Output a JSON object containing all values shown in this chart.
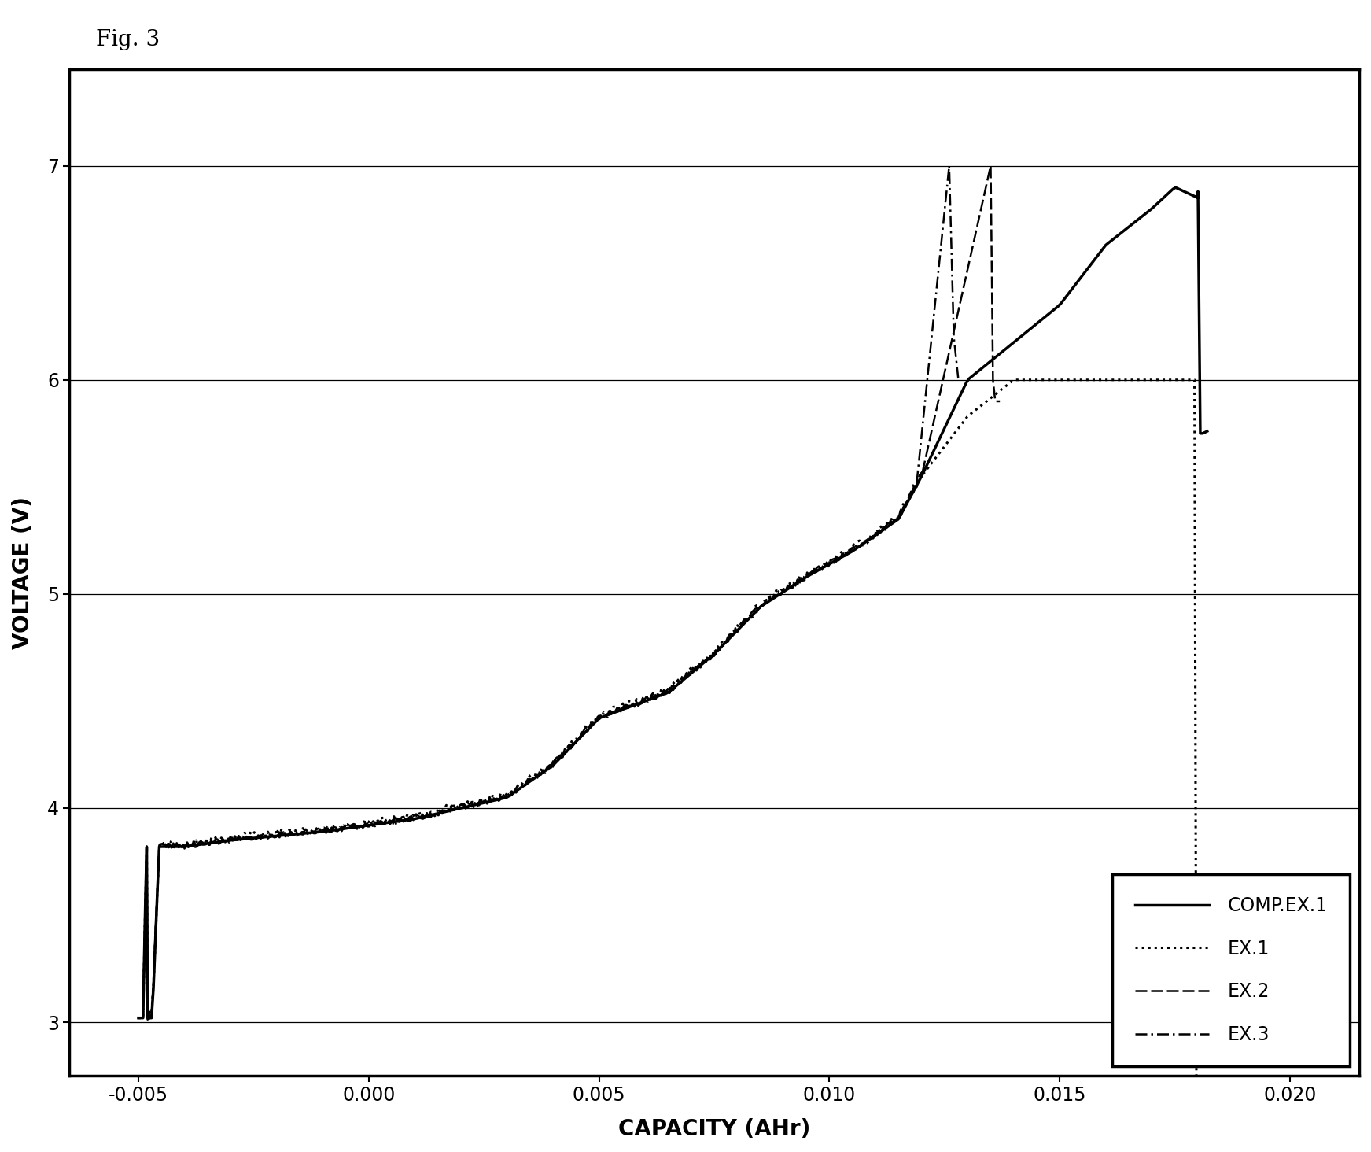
{
  "title": "Fig. 3",
  "xlabel": "CAPACITY (AHr)",
  "ylabel": "VOLTAGE (V)",
  "xlim": [
    -0.0065,
    0.0215
  ],
  "ylim": [
    2.75,
    7.45
  ],
  "xticks": [
    -0.005,
    0.0,
    0.005,
    0.01,
    0.015,
    0.02
  ],
  "yticks": [
    3,
    4,
    5,
    6,
    7
  ],
  "legend_labels": [
    "COMP.EX.1",
    "EX.1",
    "EX.2",
    "EX.3"
  ],
  "line_color": "#000000",
  "background_color": "#ffffff",
  "title_fontsize": 20,
  "axis_label_fontsize": 20,
  "tick_fontsize": 17,
  "legend_fontsize": 17
}
